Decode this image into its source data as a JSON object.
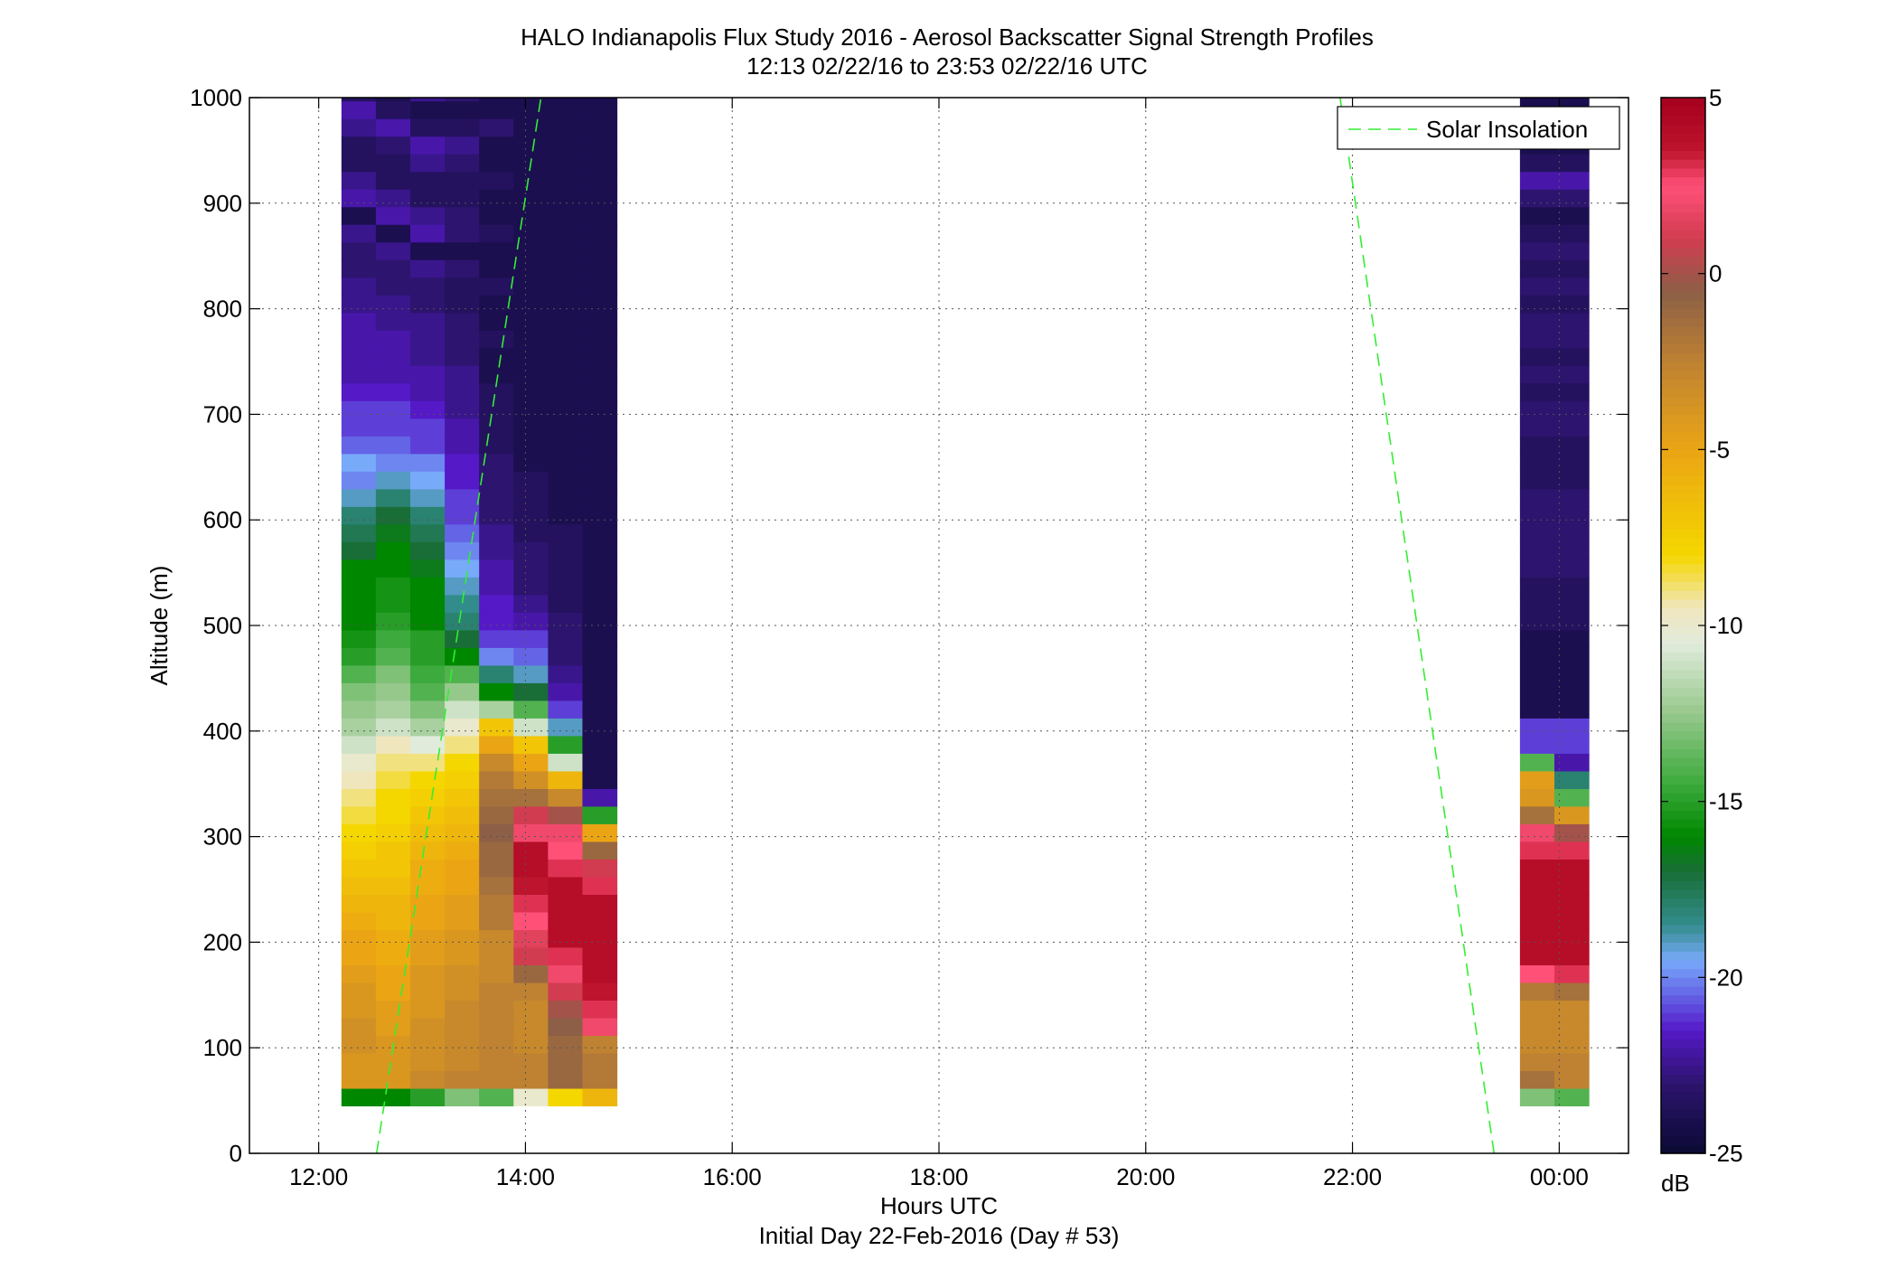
{
  "chart_data": {
    "type": "heatmap",
    "title": "HALO Indianapolis Flux Study 2016 - Aerosol Backscatter Signal Strength Profiles",
    "subtitle": "12:13 02/22/16 to 23:53 02/22/16  UTC",
    "xlabel": "Hours UTC",
    "xlabel2": "Initial Day 22-Feb-2016 (Day # 53)",
    "ylabel": "Altitude (m)",
    "colorbar_label": "dB",
    "x_ticks": [
      "12:00",
      "14:00",
      "16:00",
      "18:00",
      "20:00",
      "22:00",
      "00:00"
    ],
    "x_tick_hours": [
      12,
      14,
      16,
      18,
      20,
      22,
      24
    ],
    "xlim_hours": [
      11.33,
      24.67
    ],
    "y_ticks": [
      "0",
      "100",
      "200",
      "300",
      "400",
      "500",
      "600",
      "700",
      "800",
      "900",
      "1000"
    ],
    "ylim": [
      0,
      1000
    ],
    "color_range": [
      -25,
      5
    ],
    "colorbar_ticks": [
      "5",
      "0",
      "-5",
      "-10",
      "-15",
      "-20",
      "-25"
    ],
    "colorbar_tick_values": [
      5,
      0,
      -5,
      -10,
      -15,
      -20,
      -25
    ],
    "grid": true,
    "legend_position": "top-right",
    "legend": [
      "Solar Insolation"
    ],
    "solar_insolation": [
      {
        "x": [
          12.56,
          14.15
        ],
        "y": [
          0,
          1000
        ]
      },
      {
        "x": [
          21.88,
          23.37
        ],
        "y": [
          1000,
          0
        ]
      }
    ],
    "heatmap_segments": [
      {
        "x_start": 12.22,
        "x_step": 0.333,
        "y_start": 45,
        "y_step": 16.7,
        "values_by_column": [
          [
            -16,
            -4,
            -4,
            -3.5,
            -3.5,
            -4,
            -4,
            -4.5,
            -5,
            -5,
            -5.5,
            -6,
            -6.5,
            -7,
            -7.5,
            -8,
            -8.5,
            -9,
            -9.5,
            -10,
            -11,
            -12,
            -12.5,
            -13,
            -14,
            -15,
            -15.5,
            -16,
            -16,
            -16,
            -16,
            -17,
            -17.5,
            -18,
            -19,
            -20,
            -19.5,
            -20.5,
            -21,
            -21,
            -21.5,
            -22,
            -22,
            -22,
            -22,
            -22.5,
            -22.5,
            -23,
            -23,
            -22.5,
            -24,
            -22,
            -22.5,
            -23.5,
            -23.5,
            -22.5,
            -22,
            -23.5,
            -24,
            -22.5
          ],
          [
            -16,
            -4,
            -4,
            -4,
            -4.5,
            -4.5,
            -5,
            -5,
            -5.5,
            -5.5,
            -6,
            -6,
            -6.5,
            -7,
            -7,
            -7.5,
            -8,
            -8,
            -8.5,
            -9,
            -9.5,
            -11,
            -12,
            -12.5,
            -13,
            -14,
            -14.5,
            -15,
            -15.5,
            -15.5,
            -16,
            -16,
            -16.5,
            -17,
            -18,
            -19,
            -20,
            -20.5,
            -21,
            -21,
            -21.5,
            -22,
            -22,
            -22,
            -22.5,
            -22.5,
            -23,
            -23,
            -22.5,
            -24,
            -22,
            -22.5,
            -23.5,
            -23.5,
            -23,
            -22,
            -23.5,
            -24,
            -22.5,
            -22.5
          ],
          [
            -15,
            -3,
            -3.5,
            -3.5,
            -3.5,
            -4,
            -4,
            -4,
            -4.5,
            -4.5,
            -5,
            -5,
            -5.5,
            -5.5,
            -6,
            -6.5,
            -7,
            -7.5,
            -8,
            -9,
            -10.5,
            -12,
            -13,
            -14,
            -14.5,
            -15,
            -15,
            -16,
            -16,
            -16,
            -16.5,
            -17,
            -17.5,
            -18,
            -19,
            -19.5,
            -20,
            -21,
            -21,
            -21.5,
            -22,
            -22,
            -22.5,
            -22.5,
            -22.5,
            -23,
            -23,
            -22.5,
            -24,
            -22,
            -22.5,
            -23.5,
            -23.5,
            -22.5,
            -22,
            -23.5,
            -24,
            -22.5,
            -22.5,
            -22.5
          ],
          [
            -13,
            -2.5,
            -3,
            -3,
            -3,
            -3,
            -3.5,
            -3.5,
            -4,
            -4,
            -4.5,
            -4.5,
            -5,
            -5,
            -5.5,
            -6,
            -6.5,
            -7,
            -7.5,
            -8,
            -9,
            -10,
            -11,
            -12.5,
            -14,
            -16,
            -17,
            -18,
            -18.5,
            -19,
            -19.5,
            -20,
            -20.5,
            -21,
            -21,
            -21.5,
            -21.5,
            -22,
            -22,
            -22.5,
            -22.5,
            -22.5,
            -23,
            -23,
            -23,
            -23.5,
            -23.5,
            -23,
            -24,
            -23,
            -23,
            -23.5,
            -23.5,
            -23,
            -22.5,
            -23.5,
            -24,
            -23,
            -23,
            -23
          ],
          [
            -14,
            -2.5,
            -2.5,
            -2.5,
            -2.5,
            -2.5,
            -2.5,
            -3,
            -3,
            -3,
            -2,
            -2,
            -1.5,
            -1,
            -1,
            -0.5,
            -1,
            -1.5,
            -2,
            -3,
            -5,
            -7,
            -12,
            -16,
            -18,
            -20,
            -21,
            -21.5,
            -21.5,
            -22,
            -22,
            -22.5,
            -22.5,
            -23,
            -23,
            -23,
            -23,
            -23.5,
            -23.5,
            -23.5,
            -23.5,
            -24,
            -24,
            -23.5,
            -24,
            -24,
            -23.5,
            -24,
            -24,
            -23.5,
            -24,
            -24,
            -23.5,
            -24,
            -24,
            -23,
            -24,
            -24,
            -23.5,
            -24
          ],
          [
            -10,
            -2.5,
            -2.5,
            -3,
            -3,
            -3,
            -2.5,
            -1,
            1,
            1.5,
            2.5,
            3,
            3.5,
            4,
            4,
            2,
            1,
            -1.5,
            -3.5,
            -5,
            -7,
            -11,
            -14,
            -17,
            -19,
            -20.5,
            -21,
            -22,
            -22.5,
            -23,
            -23,
            -23,
            -23.5,
            -23.5,
            -23.5,
            -23.5,
            -24,
            -24,
            -24,
            -24,
            -24,
            -24,
            -24,
            -24,
            -24,
            -24,
            -24,
            -24,
            -24,
            -24,
            -24,
            -24,
            -24,
            -24,
            -24,
            -24,
            -24,
            -24,
            -24,
            -24
          ],
          [
            -8,
            -1,
            -1,
            -1,
            -0.5,
            0,
            1,
            2,
            3,
            4,
            4,
            4,
            4,
            3,
            2.5,
            2,
            0,
            -3,
            -6,
            -11,
            -15,
            -19,
            -21,
            -22,
            -22.5,
            -23,
            -23,
            -23,
            -23.5,
            -23.5,
            -23.5,
            -23.5,
            -23.5,
            -24,
            -24,
            -24,
            -24,
            -24,
            -24,
            -24,
            -24,
            -24,
            -24,
            -24,
            -24,
            -24,
            -24,
            -24,
            -24,
            -24,
            -24,
            -24,
            -24,
            -24,
            -24,
            -24,
            -24,
            -24,
            -24,
            -24
          ],
          [
            -6,
            -2,
            -2,
            -2.5,
            2,
            3,
            3.5,
            4,
            4,
            4,
            4,
            4,
            3,
            1,
            -1,
            -5,
            -15,
            -22,
            -24,
            -24,
            -24,
            -24,
            -24,
            -24,
            -24,
            -24,
            -24,
            -24,
            -24,
            -24,
            -24,
            -24,
            -24,
            -24,
            -24,
            -24,
            -24,
            -24,
            -24,
            -24,
            -24,
            -24,
            -24,
            -24,
            -24,
            -24,
            -24,
            -24,
            -24,
            -24,
            -24,
            -24,
            -24,
            -24,
            -24,
            -24,
            -24,
            -24,
            -24,
            -24
          ]
        ]
      },
      {
        "x_start": 23.62,
        "x_step": 0.333,
        "y_start": 45,
        "y_step": 16.7,
        "values_by_column": [
          [
            -13,
            -1.5,
            -2.5,
            -3,
            -3,
            -3,
            -2,
            2.5,
            4,
            4,
            4,
            4,
            4,
            4,
            3,
            2,
            -1.5,
            -4,
            -4.5,
            -14,
            -21,
            -21,
            -24,
            -24,
            -24,
            -24,
            -24,
            -23.5,
            -23.5,
            -23.5,
            -23,
            -23,
            -23,
            -23,
            -23,
            -23.5,
            -23.5,
            -23.5,
            -23,
            -23,
            -23.5,
            -23,
            -23.5,
            -23,
            -23,
            -23.5,
            -23,
            -23.5,
            -23,
            -23.5,
            -24,
            -23,
            -22,
            -23.5,
            -24,
            -23,
            -24,
            -24,
            -23,
            -23
          ],
          [
            -14,
            -2.5,
            -2.5,
            -3,
            -3,
            -3,
            -1.5,
            3,
            4,
            4,
            4,
            4,
            4,
            4,
            3,
            0,
            -4,
            -14,
            -18,
            -22,
            -21,
            -21,
            -24,
            -24,
            -24,
            -24,
            -24,
            -23.5,
            -23.5,
            -23.5,
            -23,
            -23,
            -23,
            -23,
            -23,
            -23.5,
            -23.5,
            -23.5,
            -23,
            -23,
            -23.5,
            -23,
            -23.5,
            -23,
            -23,
            -23.5,
            -23,
            -23.5,
            -23,
            -23.5,
            -24,
            -23,
            -22,
            -23.5,
            -24,
            -23,
            -24,
            -24,
            -23,
            -23
          ]
        ]
      }
    ]
  }
}
